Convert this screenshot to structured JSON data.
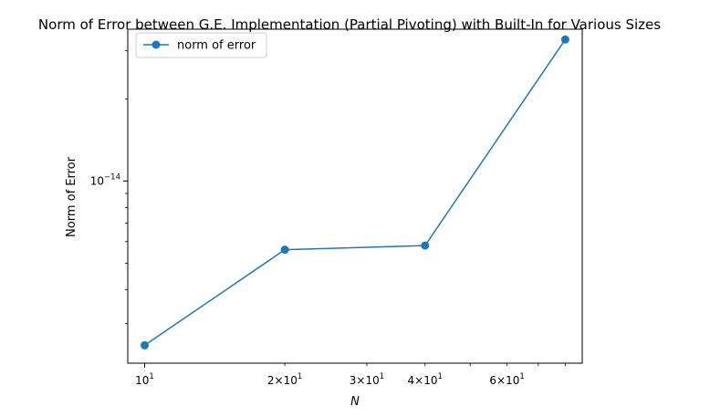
{
  "chart_data": {
    "type": "line",
    "title": "Norm of Error between G.E. Implementation (Partial Pivoting) with Built-In for Various Sizes",
    "xlabel": "N",
    "ylabel": "Norm of Error",
    "xscale": "log",
    "yscale": "log",
    "xlim": [
      9.2,
      87.0
    ],
    "ylim": [
      2.15e-15,
      3.6e-14
    ],
    "x_major_ticks": [
      {
        "value": 10,
        "base": "10",
        "exp": "1"
      }
    ],
    "x_minor_ticks": [
      {
        "value": 20,
        "mant": "2",
        "base": "10",
        "exp": "1"
      },
      {
        "value": 30,
        "mant": "3",
        "base": "10",
        "exp": "1"
      },
      {
        "value": 40,
        "mant": "4",
        "base": "10",
        "exp": "1"
      },
      {
        "value": 60,
        "mant": "6",
        "base": "10",
        "exp": "1"
      }
    ],
    "x_unlabeled_minor_ticks": [
      50,
      70,
      80
    ],
    "y_major_ticks": [
      {
        "value": 1e-14,
        "base": "10",
        "exp": "−14"
      }
    ],
    "y_minor_ticks": [
      3e-15,
      4e-15,
      5e-15,
      6e-15,
      7e-15,
      8e-15,
      9e-15,
      2e-14,
      3e-14
    ],
    "grid": false,
    "legend_position": "top-left",
    "series": [
      {
        "name": "norm of error",
        "color": "#1f77b4",
        "marker": "circle",
        "x": [
          10,
          20,
          40,
          80
        ],
        "y": [
          2.5e-15,
          5.6e-15,
          5.8e-15,
          3.3e-14
        ]
      }
    ]
  }
}
